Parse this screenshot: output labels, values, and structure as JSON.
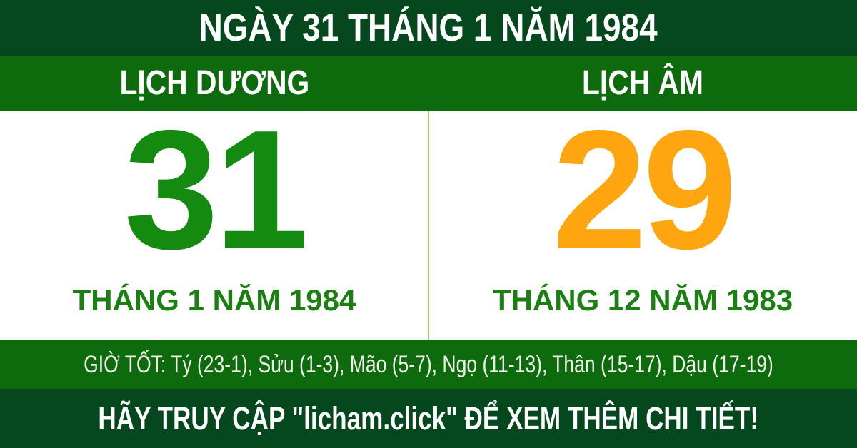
{
  "header": {
    "title": "NGÀY 31 THÁNG 1 NĂM 1984"
  },
  "columns": [
    {
      "id": "solar",
      "label": "LỊCH DƯƠNG",
      "day": "31",
      "month_label": "THÁNG 1 NĂM 1984"
    },
    {
      "id": "lunar",
      "label": "LỊCH ÂM",
      "day": "29",
      "month_label": "THÁNG 12 NĂM 1983"
    }
  ],
  "good_hours": {
    "text": "GIỜ TỐT: Tý (23-1), Sửu (1-3), Mão (5-7), Ngọ (11-13), Thân (15-17), Dậu (17-19)"
  },
  "footer": {
    "text": "HÃY TRUY CẬP \"licham.click\" ĐỂ XEM THÊM CHI TIẾT!"
  },
  "colors": {
    "dark-green": "#05481E",
    "medium-green": "#0E6B0D",
    "solar-green": "#148A10",
    "label-green": "#1B7F12",
    "lunar-orange": "#FFA50F",
    "divider-green": "#A3CE6F",
    "hours-text": "#F2F1EC"
  }
}
